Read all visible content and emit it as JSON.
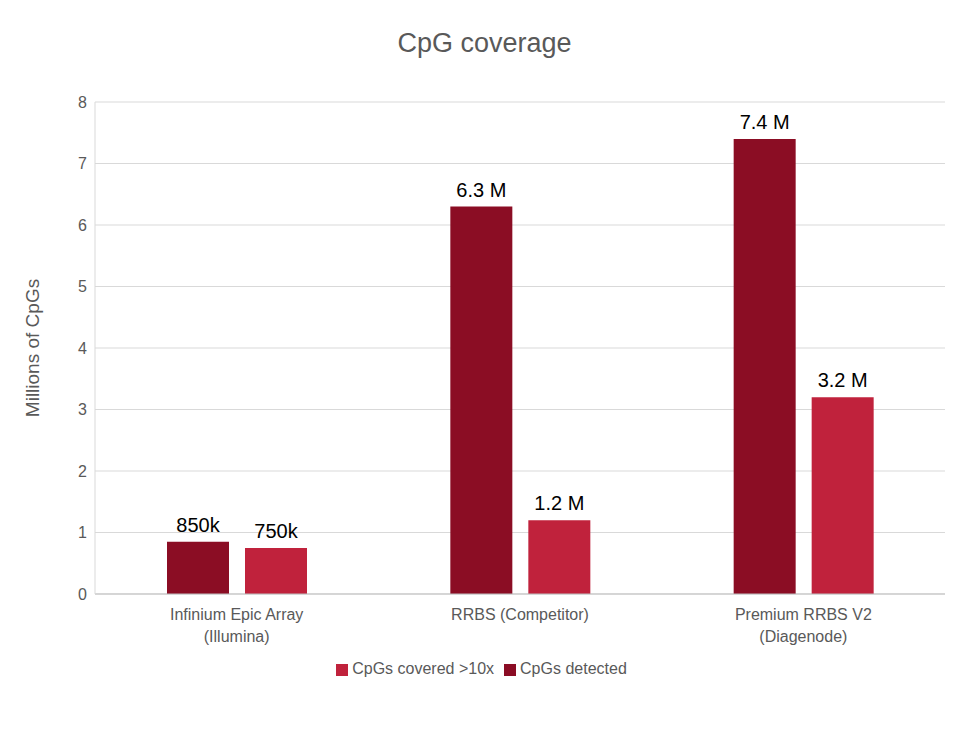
{
  "chart_data": {
    "type": "bar",
    "title": "CpG coverage",
    "y_label": "Millions of CpGs",
    "categories": [
      "Infinium Epic Array\n(Illumina)",
      "RRBS (Competitor)",
      "Premium RRBS V2\n(Diagenode)"
    ],
    "series": [
      {
        "name": "CpGs detected",
        "color": "#8b0d24",
        "values": [
          0.85,
          6.3,
          7.4
        ],
        "value_labels": [
          "850k",
          "6.3 M",
          "7.4 M"
        ]
      },
      {
        "name": "CpGs covered >10x",
        "color": "#c0223c",
        "values": [
          0.75,
          1.2,
          3.2
        ],
        "value_labels": [
          "750k",
          "1.2 M",
          "3.2 M"
        ]
      }
    ],
    "ylim": [
      0,
      8
    ],
    "yticks": [
      0,
      1,
      2,
      3,
      4,
      5,
      6,
      7,
      8
    ],
    "grid": true,
    "legend": "bottom",
    "data_labels": true
  }
}
